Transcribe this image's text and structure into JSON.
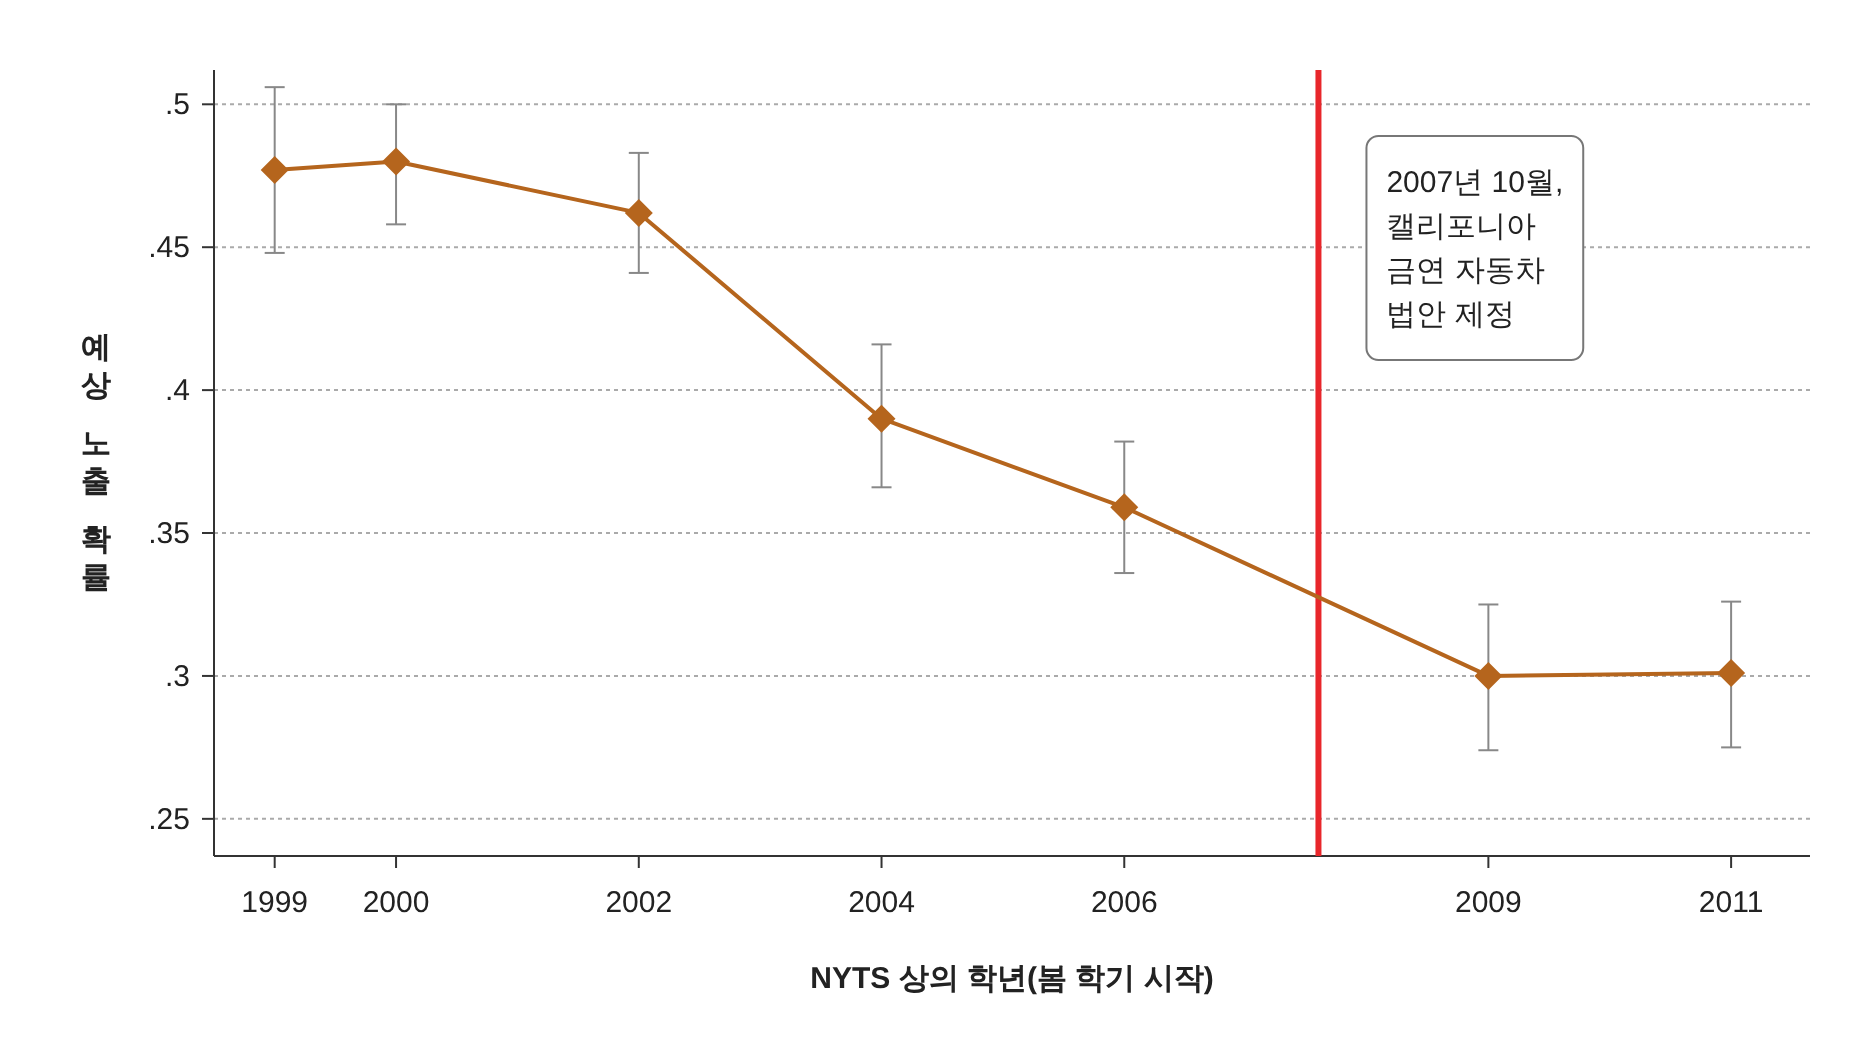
{
  "chart_data": {
    "type": "line",
    "xlabel": "NYTS 상의 학년(봄 학기 시작)",
    "ylabel": "예상 노출 확률",
    "x": [
      1999,
      2000,
      2002,
      2004,
      2006,
      2009,
      2011
    ],
    "xticks": [
      1999,
      2000,
      2002,
      2004,
      2006,
      2009,
      2011
    ],
    "xlim": [
      1998.5,
      2011.65
    ],
    "ylim": [
      0.237,
      0.512
    ],
    "yticks": [
      {
        "value": 0.25,
        "label": ".25"
      },
      {
        "value": 0.3,
        "label": ".3"
      },
      {
        "value": 0.35,
        "label": ".35"
      },
      {
        "value": 0.4,
        "label": ".4"
      },
      {
        "value": 0.45,
        "label": ".45"
      },
      {
        "value": 0.5,
        "label": ".5"
      }
    ],
    "series": [
      {
        "color": "#b5651d",
        "values": [
          0.477,
          0.48,
          0.462,
          0.39,
          0.359,
          0.3,
          0.301
        ],
        "errors": [
          [
            0.448,
            0.506
          ],
          [
            0.458,
            0.5
          ],
          [
            0.441,
            0.483
          ],
          [
            0.366,
            0.416
          ],
          [
            0.336,
            0.382
          ],
          [
            0.274,
            0.325
          ],
          [
            0.275,
            0.326
          ]
        ]
      }
    ],
    "marker": "diamond",
    "grid": "y",
    "ref_lines": [
      {
        "axis": "x",
        "value": 2007.6,
        "label": "2007년 10월,\n캘리포니아\n금연 자동차\n법안 제정",
        "color": "#e8262b"
      }
    ]
  }
}
